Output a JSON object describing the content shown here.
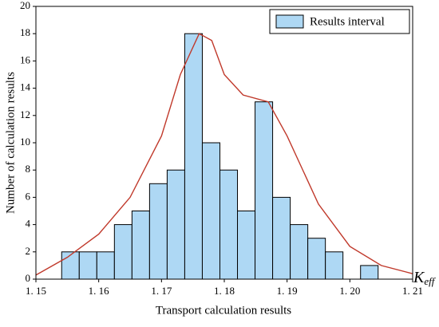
{
  "chart_data": {
    "type": "histogram",
    "x_label": "Transport calculation results",
    "y_label": "Number of calculation results",
    "x_symbol": "K",
    "x_symbol_subscript": "eff",
    "bins": [
      1.1541,
      1.1569,
      1.1597,
      1.1625,
      1.1653,
      1.1681,
      1.1709,
      1.1737,
      1.1765,
      1.1793,
      1.1821,
      1.1849,
      1.1877,
      1.1905,
      1.1933,
      1.1961,
      1.1989,
      1.2017,
      1.2045
    ],
    "series": [
      {
        "name": "Results interval",
        "color": "#aed8f4",
        "values": [
          2,
          2,
          2,
          4,
          5,
          7,
          8,
          18,
          10,
          8,
          5,
          13,
          6,
          4,
          3,
          2,
          0,
          1
        ]
      }
    ],
    "curve": {
      "color": "#c0392b",
      "x": [
        1.15,
        1.155,
        1.16,
        1.165,
        1.17,
        1.173,
        1.176,
        1.178,
        1.18,
        1.183,
        1.187,
        1.19,
        1.195,
        1.2,
        1.205,
        1.21
      ],
      "y": [
        0.3,
        1.6,
        3.3,
        6,
        10.5,
        15,
        18,
        17.5,
        15,
        13.5,
        13,
        10.5,
        5.5,
        2.4,
        1,
        0.4
      ]
    },
    "xlim": [
      1.15,
      1.21
    ],
    "xticks": [
      {
        "value": 1.15,
        "label": "1. 15"
      },
      {
        "value": 1.16,
        "label": "1. 16"
      },
      {
        "value": 1.17,
        "label": "1. 17"
      },
      {
        "value": 1.18,
        "label": "1. 18"
      },
      {
        "value": 1.19,
        "label": "1. 19"
      },
      {
        "value": 1.2,
        "label": "1. 20"
      },
      {
        "value": 1.21,
        "label": "1. 21"
      }
    ],
    "ylim": [
      0,
      20
    ],
    "yticks": [
      0,
      2,
      4,
      6,
      8,
      10,
      12,
      14,
      16,
      18,
      20
    ],
    "legend": "upper right"
  }
}
